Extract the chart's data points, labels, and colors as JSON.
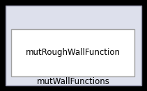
{
  "outer_label": "mutWallFunctions",
  "inner_label": "mutRoughWallFunction",
  "outer_bg": "#dde0ec",
  "outer_border": "#9090a8",
  "inner_bg": "#ffffff",
  "inner_border": "#a0a0a0",
  "fig_bg": "#000000",
  "text_color": "#000000",
  "outer_font_size": 8.5,
  "inner_font_size": 8.5
}
